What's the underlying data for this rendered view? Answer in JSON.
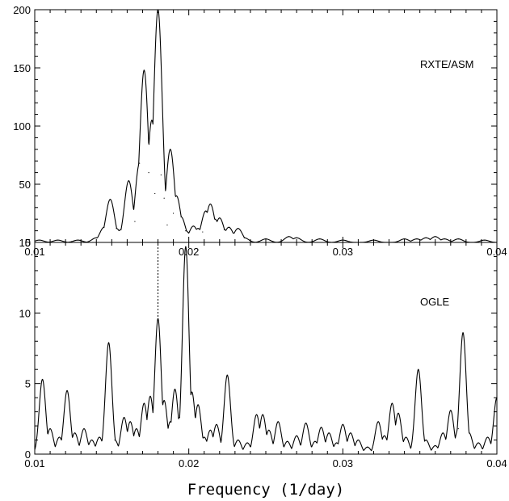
{
  "chart_data": [
    {
      "type": "line",
      "panel_label": "RXTE/ASM",
      "xlabel": "",
      "xlim": [
        0.01,
        0.04
      ],
      "ylim": [
        0,
        200
      ],
      "x_ticks": [
        0.01,
        0.02,
        0.03,
        0.04
      ],
      "x_tick_labels": [
        "0.01",
        "0.02",
        "0.03",
        "0.04"
      ],
      "y_ticks": [
        0,
        50,
        100,
        150,
        200
      ],
      "y_tick_labels": [
        "0",
        "50",
        "100",
        "150",
        "200"
      ],
      "peaks": [
        {
          "x": 0.0103,
          "y": 2
        },
        {
          "x": 0.0115,
          "y": 2
        },
        {
          "x": 0.0128,
          "y": 2
        },
        {
          "x": 0.014,
          "y": 4
        },
        {
          "x": 0.0145,
          "y": 13
        },
        {
          "x": 0.0149,
          "y": 37
        },
        {
          "x": 0.0153,
          "y": 12
        },
        {
          "x": 0.0156,
          "y": 11
        },
        {
          "x": 0.0161,
          "y": 53
        },
        {
          "x": 0.0165,
          "y": 18
        },
        {
          "x": 0.0168,
          "y": 68
        },
        {
          "x": 0.0171,
          "y": 148
        },
        {
          "x": 0.0174,
          "y": 60
        },
        {
          "x": 0.0176,
          "y": 105
        },
        {
          "x": 0.0178,
          "y": 42
        },
        {
          "x": 0.018,
          "y": 200
        },
        {
          "x": 0.0182,
          "y": 58
        },
        {
          "x": 0.0184,
          "y": 38
        },
        {
          "x": 0.0186,
          "y": 15
        },
        {
          "x": 0.0188,
          "y": 80
        },
        {
          "x": 0.019,
          "y": 25
        },
        {
          "x": 0.0192,
          "y": 40
        },
        {
          "x": 0.0195,
          "y": 22
        },
        {
          "x": 0.0198,
          "y": 10
        },
        {
          "x": 0.0203,
          "y": 14
        },
        {
          "x": 0.0206,
          "y": 12
        },
        {
          "x": 0.0209,
          "y": 9
        },
        {
          "x": 0.0211,
          "y": 27
        },
        {
          "x": 0.0214,
          "y": 33
        },
        {
          "x": 0.0217,
          "y": 20
        },
        {
          "x": 0.022,
          "y": 21
        },
        {
          "x": 0.0223,
          "y": 11
        },
        {
          "x": 0.0226,
          "y": 13
        },
        {
          "x": 0.0229,
          "y": 8
        },
        {
          "x": 0.0232,
          "y": 12
        },
        {
          "x": 0.0236,
          "y": 4
        },
        {
          "x": 0.025,
          "y": 3
        },
        {
          "x": 0.0265,
          "y": 5
        },
        {
          "x": 0.027,
          "y": 4
        },
        {
          "x": 0.0285,
          "y": 3
        },
        {
          "x": 0.03,
          "y": 2
        },
        {
          "x": 0.032,
          "y": 2
        },
        {
          "x": 0.034,
          "y": 3
        },
        {
          "x": 0.0348,
          "y": 3
        },
        {
          "x": 0.0354,
          "y": 4
        },
        {
          "x": 0.036,
          "y": 5
        },
        {
          "x": 0.0366,
          "y": 3
        },
        {
          "x": 0.0375,
          "y": 3
        },
        {
          "x": 0.0392,
          "y": 2
        }
      ]
    },
    {
      "type": "line",
      "panel_label": "OGLE",
      "xlabel": "Frequency (1/day)",
      "xlim": [
        0.01,
        0.04
      ],
      "ylim": [
        0,
        15
      ],
      "x_ticks": [
        0.01,
        0.02,
        0.03,
        0.04
      ],
      "x_tick_labels": [
        "0.01",
        "0.02",
        "0.03",
        "0.04"
      ],
      "y_ticks": [
        0,
        5,
        10,
        15
      ],
      "y_tick_labels": [
        "0",
        "5",
        "10",
        "15"
      ],
      "marker_x": 0.018,
      "peaks": [
        {
          "x": 0.0105,
          "y": 5.3
        },
        {
          "x": 0.011,
          "y": 1.8
        },
        {
          "x": 0.0116,
          "y": 1.2
        },
        {
          "x": 0.0121,
          "y": 4.5
        },
        {
          "x": 0.0126,
          "y": 1.5
        },
        {
          "x": 0.0132,
          "y": 1.8
        },
        {
          "x": 0.0137,
          "y": 1.0
        },
        {
          "x": 0.0142,
          "y": 1.2
        },
        {
          "x": 0.0148,
          "y": 7.9
        },
        {
          "x": 0.0152,
          "y": 1.0
        },
        {
          "x": 0.0158,
          "y": 2.6
        },
        {
          "x": 0.0162,
          "y": 2.3
        },
        {
          "x": 0.0166,
          "y": 1.8
        },
        {
          "x": 0.0171,
          "y": 3.6
        },
        {
          "x": 0.0175,
          "y": 4.1
        },
        {
          "x": 0.018,
          "y": 9.6
        },
        {
          "x": 0.0184,
          "y": 3.8
        },
        {
          "x": 0.0188,
          "y": 2.3
        },
        {
          "x": 0.0191,
          "y": 4.6
        },
        {
          "x": 0.0194,
          "y": 2.6
        },
        {
          "x": 0.0198,
          "y": 14.7
        },
        {
          "x": 0.0202,
          "y": 4.4
        },
        {
          "x": 0.0206,
          "y": 3.5
        },
        {
          "x": 0.021,
          "y": 1.2
        },
        {
          "x": 0.0214,
          "y": 1.7
        },
        {
          "x": 0.0218,
          "y": 2.1
        },
        {
          "x": 0.0225,
          "y": 5.6
        },
        {
          "x": 0.0232,
          "y": 1.0
        },
        {
          "x": 0.0238,
          "y": 0.8
        },
        {
          "x": 0.0244,
          "y": 2.8
        },
        {
          "x": 0.0248,
          "y": 2.8
        },
        {
          "x": 0.0252,
          "y": 1.7
        },
        {
          "x": 0.0258,
          "y": 2.3
        },
        {
          "x": 0.0264,
          "y": 0.9
        },
        {
          "x": 0.027,
          "y": 1.3
        },
        {
          "x": 0.0276,
          "y": 2.2
        },
        {
          "x": 0.0282,
          "y": 0.9
        },
        {
          "x": 0.0286,
          "y": 1.9
        },
        {
          "x": 0.0291,
          "y": 1.5
        },
        {
          "x": 0.0296,
          "y": 0.8
        },
        {
          "x": 0.03,
          "y": 2.1
        },
        {
          "x": 0.0305,
          "y": 1.5
        },
        {
          "x": 0.031,
          "y": 1.0
        },
        {
          "x": 0.0316,
          "y": 0.5
        },
        {
          "x": 0.0323,
          "y": 2.3
        },
        {
          "x": 0.0327,
          "y": 1.3
        },
        {
          "x": 0.0332,
          "y": 3.6
        },
        {
          "x": 0.0336,
          "y": 2.9
        },
        {
          "x": 0.0341,
          "y": 1.2
        },
        {
          "x": 0.0349,
          "y": 6.0
        },
        {
          "x": 0.0354,
          "y": 1.0
        },
        {
          "x": 0.036,
          "y": 0.6
        },
        {
          "x": 0.0365,
          "y": 1.5
        },
        {
          "x": 0.037,
          "y": 3.1
        },
        {
          "x": 0.0375,
          "y": 1.8
        },
        {
          "x": 0.0378,
          "y": 8.6
        },
        {
          "x": 0.0382,
          "y": 1.5
        },
        {
          "x": 0.0388,
          "y": 0.8
        },
        {
          "x": 0.0394,
          "y": 1.2
        },
        {
          "x": 0.04,
          "y": 4.0
        }
      ]
    }
  ]
}
